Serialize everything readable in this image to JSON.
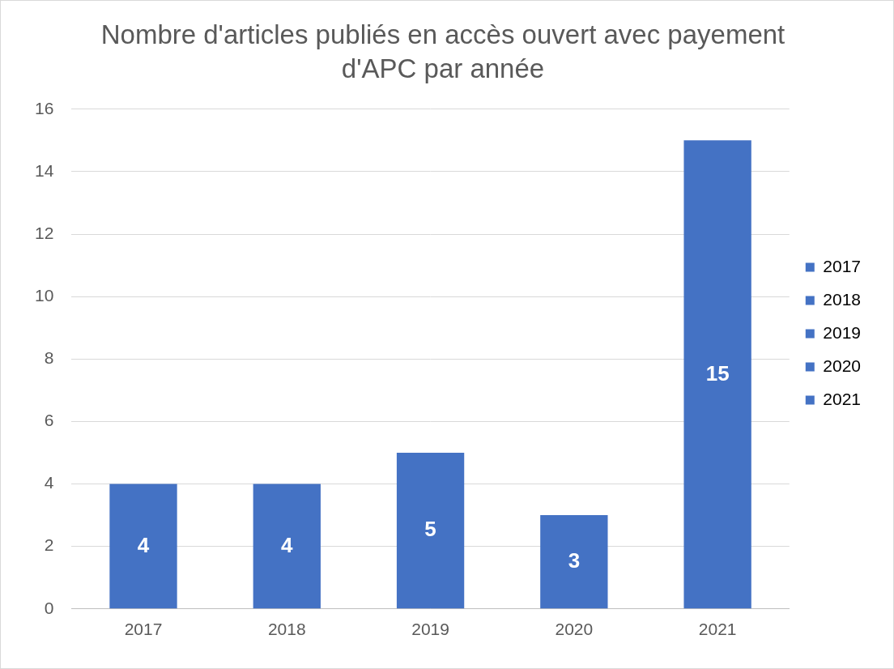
{
  "chart_data": {
    "type": "bar",
    "title": "Nombre d'articles publiés en accès ouvert avec payement d'APC par année",
    "categories": [
      "2017",
      "2018",
      "2019",
      "2020",
      "2021"
    ],
    "values": [
      4,
      4,
      5,
      3,
      15
    ],
    "color": "#4472c4",
    "ylim": [
      0,
      16
    ],
    "yticks": [
      0,
      2,
      4,
      6,
      8,
      10,
      12,
      14,
      16
    ],
    "grid": true,
    "data_labels": true,
    "legend": "right"
  }
}
